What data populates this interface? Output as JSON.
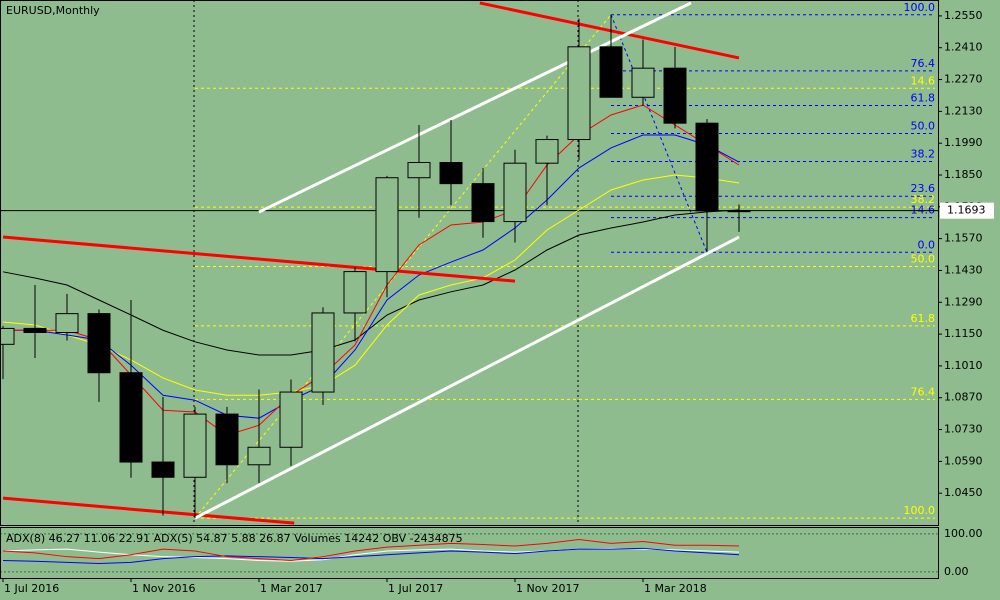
{
  "chart_data": [
    {
      "type": "candlestick",
      "title": "EURUSD,Monthly",
      "categories": [
        "1 Jul 2016",
        null,
        null,
        null,
        "1 Nov 2016",
        null,
        null,
        null,
        "1 Mar 2017",
        null,
        null,
        null,
        "1 Jul 2017",
        null,
        null,
        null,
        "1 Nov 2017",
        null,
        null,
        null,
        "1 Mar 2018",
        null,
        null,
        null
      ],
      "open": [
        1.1105,
        1.1175,
        1.1157,
        1.124,
        1.098,
        1.0587,
        1.052,
        1.0798,
        1.0575,
        1.0652,
        1.0895,
        1.1243,
        1.1425,
        1.1838,
        1.1905,
        1.1812,
        1.1645,
        1.1902,
        1.2006,
        1.2414,
        1.2192,
        1.232,
        1.2078,
        1.1692
      ],
      "high": [
        1.1186,
        1.1366,
        1.1327,
        1.1258,
        1.13,
        1.0874,
        1.083,
        1.083,
        1.0906,
        1.095,
        1.1268,
        1.1445,
        1.1846,
        1.207,
        1.2092,
        1.188,
        1.1961,
        1.2023,
        1.2538,
        1.2555,
        1.2446,
        1.2413,
        1.2096,
        1.172
      ],
      "low": [
        1.0952,
        1.1045,
        1.1122,
        1.0852,
        1.0518,
        1.0352,
        1.034,
        1.0494,
        1.0495,
        1.057,
        1.0838,
        1.1118,
        1.1312,
        1.1662,
        1.1717,
        1.1574,
        1.1553,
        1.1717,
        1.1915,
        1.2206,
        1.2155,
        1.2055,
        1.151,
        1.16
      ],
      "close": [
        1.1175,
        1.1157,
        1.124,
        1.098,
        1.0587,
        1.052,
        1.0798,
        1.0575,
        1.0652,
        1.0895,
        1.1243,
        1.1425,
        1.1838,
        1.1905,
        1.1812,
        1.1645,
        1.1902,
        1.2006,
        1.2414,
        1.2192,
        1.232,
        1.2078,
        1.1692,
        1.1693
      ],
      "ylim": [
        1.031,
        1.262
      ],
      "yticks": [
        {
          "value": 1.255,
          "label": "1.2550"
        },
        {
          "value": 1.241,
          "label": "1.2410"
        },
        {
          "value": 1.227,
          "label": "1.2270"
        },
        {
          "value": 1.213,
          "label": "1.2130"
        },
        {
          "value": 1.199,
          "label": "1.1990"
        },
        {
          "value": 1.185,
          "label": "1.1850"
        },
        {
          "value": 1.171,
          "label": "1.1710"
        },
        {
          "value": 1.157,
          "label": "1.1570"
        },
        {
          "value": 1.143,
          "label": "1.1430"
        },
        {
          "value": 1.129,
          "label": "1.1290"
        },
        {
          "value": 1.115,
          "label": "1.1150"
        },
        {
          "value": 1.101,
          "label": "1.1010"
        },
        {
          "value": 1.087,
          "label": "1.0870"
        },
        {
          "value": 1.073,
          "label": "1.0730"
        },
        {
          "value": 1.059,
          "label": "1.0590"
        },
        {
          "value": 1.045,
          "label": "1.0450"
        }
      ],
      "last_price": 1.1693,
      "background": "#8fbc8f",
      "up_color": "#8fbc8f",
      "down_color": "#000000",
      "moving_averages": [
        {
          "color": "#000000",
          "values": [
            1.1424,
            1.1397,
            1.1366,
            1.13,
            1.1234,
            1.1167,
            1.1116,
            1.108,
            1.1058,
            1.1058,
            1.108,
            1.1124,
            1.1234,
            1.13,
            1.1336,
            1.1366,
            1.1432,
            1.152,
            1.1586,
            1.1617,
            1.1643,
            1.1674,
            1.1688,
            1.1696
          ]
        },
        {
          "color": "#ffff00",
          "values": [
            1.1203,
            1.119,
            1.1146,
            1.1102,
            1.1036,
            1.0957,
            1.0904,
            1.0881,
            1.0881,
            1.0895,
            1.0925,
            1.1013,
            1.119,
            1.1322,
            1.1366,
            1.1397,
            1.1476,
            1.1608,
            1.1696,
            1.1784,
            1.1828,
            1.185,
            1.1837,
            1.1815
          ]
        },
        {
          "color": "#0000ff",
          "values": [
            1.1167,
            1.1167,
            1.1146,
            1.1124,
            1.1013,
            1.0881,
            1.0859,
            1.0793,
            1.078,
            1.0859,
            1.0925,
            1.108,
            1.13,
            1.141,
            1.1467,
            1.152,
            1.1617,
            1.174,
            1.1881,
            1.1969,
            1.2026,
            1.2026,
            1.1982,
            1.1907
          ]
        },
        {
          "color": "#ff0000",
          "values": [
            1.1167,
            1.1167,
            1.1167,
            1.1124,
            1.097,
            1.0815,
            1.0807,
            1.0705,
            1.0749,
            1.0881,
            1.097,
            1.1102,
            1.1366,
            1.1542,
            1.163,
            1.1643,
            1.1696,
            1.1894,
            1.2026,
            1.2114,
            1.2158,
            1.207,
            1.1982,
            1.1894
          ]
        }
      ],
      "fibonacci": [
        {
          "color": "#ffff00",
          "from": [
            6,
            1.034
          ],
          "to": [
            19,
            1.2555
          ],
          "levels": [
            14.6,
            38.2,
            {
              "value": 50,
              "label": "50.0"
            },
            61.8,
            76.4,
            {
              "value": 100,
              "label": "100.0"
            }
          ]
        },
        {
          "color": "#0000ff",
          "from": [
            19,
            1.2555
          ],
          "to": [
            22,
            1.151
          ],
          "levels": [
            {
              "value": 100,
              "label": "100.0"
            },
            76.4,
            61.8,
            {
              "value": 50,
              "label": "50.0"
            },
            38.2,
            23.6,
            14.6,
            {
              "value": 0,
              "label": "0.0"
            }
          ]
        }
      ],
      "trendlines": [
        {
          "color": "#ff0000",
          "points": [
            [
              14.9,
              1.2607
            ],
            [
              23,
              1.2365
            ]
          ]
        },
        {
          "color": "#ff0000",
          "points": [
            [
              0,
              1.1577
            ],
            [
              16,
              1.1383
            ]
          ]
        },
        {
          "color": "#ff0000",
          "points": [
            [
              0,
              1.0428
            ],
            [
              9.1,
              1.0318
            ]
          ]
        },
        {
          "color": "#ffffff",
          "points": [
            [
              8,
              1.1687
            ],
            [
              21.5,
              1.2607
            ]
          ]
        },
        {
          "color": "#ffffff",
          "points": [
            [
              6,
              1.034
            ],
            [
              23,
              1.1577
            ]
          ]
        }
      ]
    },
    {
      "type": "line",
      "title": "ADX(8) 46.27 11.06 22.91 ADX(5) 54.87 5.88 26.87 Volumes 14242 OBV -2434875",
      "ylim": [
        -16,
        118
      ],
      "yticks": [
        {
          "value": 100,
          "label": "100.00"
        },
        {
          "value": 0,
          "label": "0.00"
        }
      ],
      "series": [
        {
          "color": "#ffffff",
          "values": [
            55,
            58,
            60,
            52,
            45,
            40,
            38,
            35,
            30,
            28,
            32,
            45,
            55,
            58,
            60,
            55,
            52,
            55,
            60,
            62,
            60,
            58,
            55,
            52
          ]
        },
        {
          "color": "#0000ff",
          "values": [
            30,
            28,
            25,
            22,
            25,
            35,
            40,
            42,
            40,
            38,
            35,
            40,
            45,
            50,
            55,
            52,
            48,
            55,
            60,
            60,
            62,
            55,
            50,
            45
          ]
        },
        {
          "color": "#ff0000",
          "values": [
            55,
            50,
            40,
            35,
            45,
            60,
            55,
            40,
            35,
            30,
            40,
            55,
            65,
            70,
            75,
            72,
            68,
            75,
            85,
            75,
            80,
            70,
            70,
            68
          ]
        }
      ]
    }
  ]
}
